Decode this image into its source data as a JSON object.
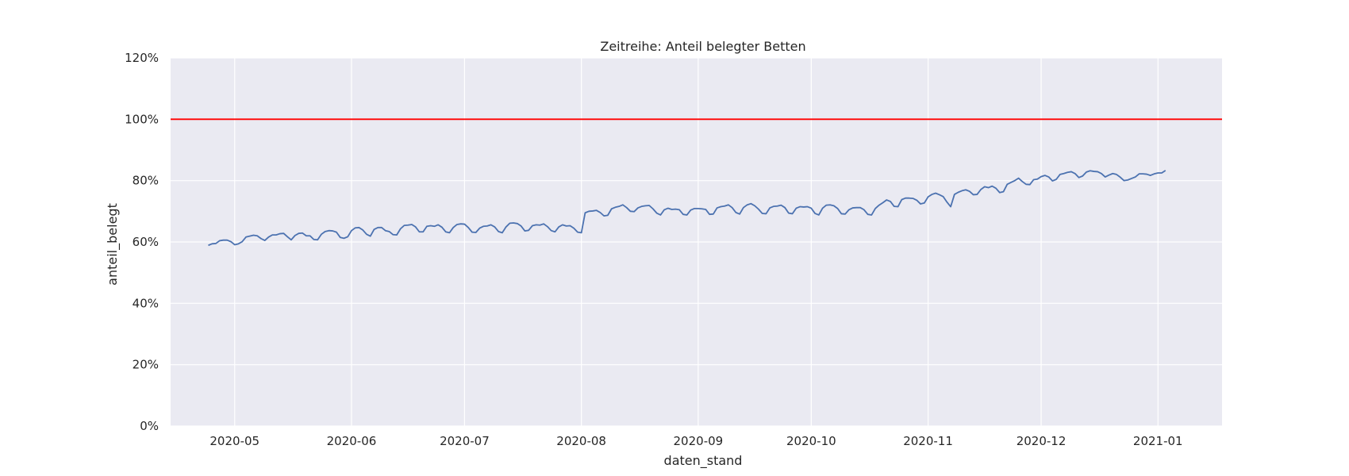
{
  "chart_data": {
    "type": "line",
    "title": "Zeitreihe: Anteil belegter Betten",
    "xlabel": "daten_stand",
    "ylabel": "anteil_belegt",
    "x_range": [
      "2020-04-14",
      "2021-01-18"
    ],
    "ylim": [
      0,
      1.2
    ],
    "y_ticks": [
      0,
      0.2,
      0.4,
      0.6,
      0.8,
      1.0,
      1.2
    ],
    "y_tick_labels": [
      "0%",
      "20%",
      "40%",
      "60%",
      "80%",
      "100%",
      "120%"
    ],
    "x_ticks": [
      "2020-05-01",
      "2020-06-01",
      "2020-07-01",
      "2020-08-01",
      "2020-09-01",
      "2020-10-01",
      "2020-11-01",
      "2020-12-01",
      "2021-01-01"
    ],
    "x_tick_labels": [
      "2020-05",
      "2020-06",
      "2020-07",
      "2020-08",
      "2020-09",
      "2020-10",
      "2020-11",
      "2020-12",
      "2021-01"
    ],
    "grid": true,
    "colors": {
      "background": "#eaeaf2",
      "grid": "#ffffff",
      "series": "#4c72b0",
      "reference": "#ff0000"
    },
    "reference_line": {
      "y": 1.0
    },
    "series": [
      {
        "start_date": "2020-04-24",
        "step_days": 1,
        "values": [
          0.589,
          0.594,
          0.595,
          0.604,
          0.606,
          0.606,
          0.601,
          0.591,
          0.594,
          0.601,
          0.616,
          0.619,
          0.622,
          0.62,
          0.611,
          0.605,
          0.616,
          0.623,
          0.623,
          0.627,
          0.628,
          0.617,
          0.607,
          0.621,
          0.628,
          0.629,
          0.62,
          0.62,
          0.608,
          0.607,
          0.625,
          0.634,
          0.637,
          0.636,
          0.632,
          0.615,
          0.612,
          0.617,
          0.637,
          0.646,
          0.647,
          0.639,
          0.625,
          0.619,
          0.641,
          0.647,
          0.647,
          0.637,
          0.634,
          0.624,
          0.623,
          0.643,
          0.654,
          0.655,
          0.657,
          0.649,
          0.633,
          0.633,
          0.651,
          0.653,
          0.651,
          0.656,
          0.648,
          0.633,
          0.63,
          0.647,
          0.657,
          0.659,
          0.658,
          0.647,
          0.632,
          0.631,
          0.645,
          0.651,
          0.652,
          0.656,
          0.649,
          0.634,
          0.63,
          0.649,
          0.661,
          0.662,
          0.66,
          0.652,
          0.636,
          0.638,
          0.653,
          0.656,
          0.655,
          0.659,
          0.65,
          0.637,
          0.633,
          0.649,
          0.656,
          0.652,
          0.653,
          0.645,
          0.632,
          0.63,
          0.695,
          0.7,
          0.701,
          0.703,
          0.696,
          0.685,
          0.687,
          0.708,
          0.713,
          0.716,
          0.721,
          0.712,
          0.7,
          0.699,
          0.711,
          0.716,
          0.718,
          0.719,
          0.708,
          0.694,
          0.688,
          0.705,
          0.71,
          0.706,
          0.707,
          0.705,
          0.69,
          0.688,
          0.704,
          0.709,
          0.709,
          0.708,
          0.706,
          0.69,
          0.691,
          0.711,
          0.715,
          0.717,
          0.721,
          0.712,
          0.696,
          0.691,
          0.712,
          0.721,
          0.725,
          0.718,
          0.707,
          0.693,
          0.692,
          0.711,
          0.716,
          0.717,
          0.72,
          0.712,
          0.694,
          0.692,
          0.71,
          0.715,
          0.714,
          0.715,
          0.71,
          0.693,
          0.688,
          0.71,
          0.72,
          0.721,
          0.718,
          0.709,
          0.692,
          0.691,
          0.705,
          0.711,
          0.712,
          0.712,
          0.705,
          0.69,
          0.688,
          0.709,
          0.72,
          0.728,
          0.737,
          0.732,
          0.716,
          0.715,
          0.738,
          0.743,
          0.743,
          0.742,
          0.736,
          0.724,
          0.727,
          0.747,
          0.755,
          0.759,
          0.754,
          0.748,
          0.73,
          0.715,
          0.755,
          0.762,
          0.767,
          0.77,
          0.765,
          0.754,
          0.755,
          0.771,
          0.78,
          0.777,
          0.782,
          0.775,
          0.761,
          0.764,
          0.788,
          0.794,
          0.8,
          0.808,
          0.797,
          0.788,
          0.787,
          0.803,
          0.805,
          0.813,
          0.817,
          0.812,
          0.799,
          0.804,
          0.82,
          0.823,
          0.827,
          0.829,
          0.823,
          0.81,
          0.815,
          0.828,
          0.832,
          0.83,
          0.829,
          0.823,
          0.812,
          0.818,
          0.823,
          0.82,
          0.811,
          0.8,
          0.802,
          0.807,
          0.812,
          0.822,
          0.822,
          0.821,
          0.817,
          0.822,
          0.825,
          0.825,
          0.833
        ]
      }
    ]
  }
}
